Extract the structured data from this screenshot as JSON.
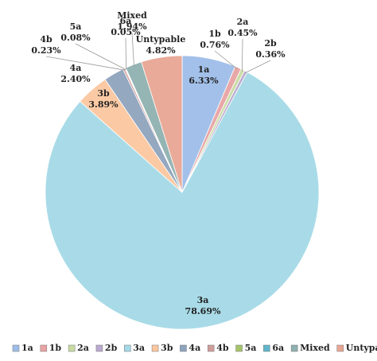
{
  "chart_data": {
    "type": "pie",
    "categories": [
      "1a",
      "1b",
      "2a",
      "2b",
      "3a",
      "3b",
      "4a",
      "4b",
      "5a",
      "6a",
      "Mixed",
      "Untypable"
    ],
    "values": [
      6.33,
      0.76,
      0.45,
      0.36,
      78.69,
      3.89,
      2.4,
      0.23,
      0.08,
      0.05,
      1.94,
      4.82
    ],
    "value_labels": [
      "6.33%",
      "0.76%",
      "0.45%",
      "0.36%",
      "78.69%",
      "3.89%",
      "2.40%",
      "0.23%",
      "0.08%",
      "0.05%",
      "1.94%",
      "4.82%"
    ],
    "colors": [
      "#9dbde8",
      "#e8a3a3",
      "#c9dba3",
      "#b9a9cf",
      "#a3d9e6",
      "#fbc79f",
      "#8ea3bd",
      "#cf9d9b",
      "#a6c46a",
      "#5fb6cc",
      "#8fb0b0",
      "#e8a593"
    ],
    "legend": "bottom"
  }
}
